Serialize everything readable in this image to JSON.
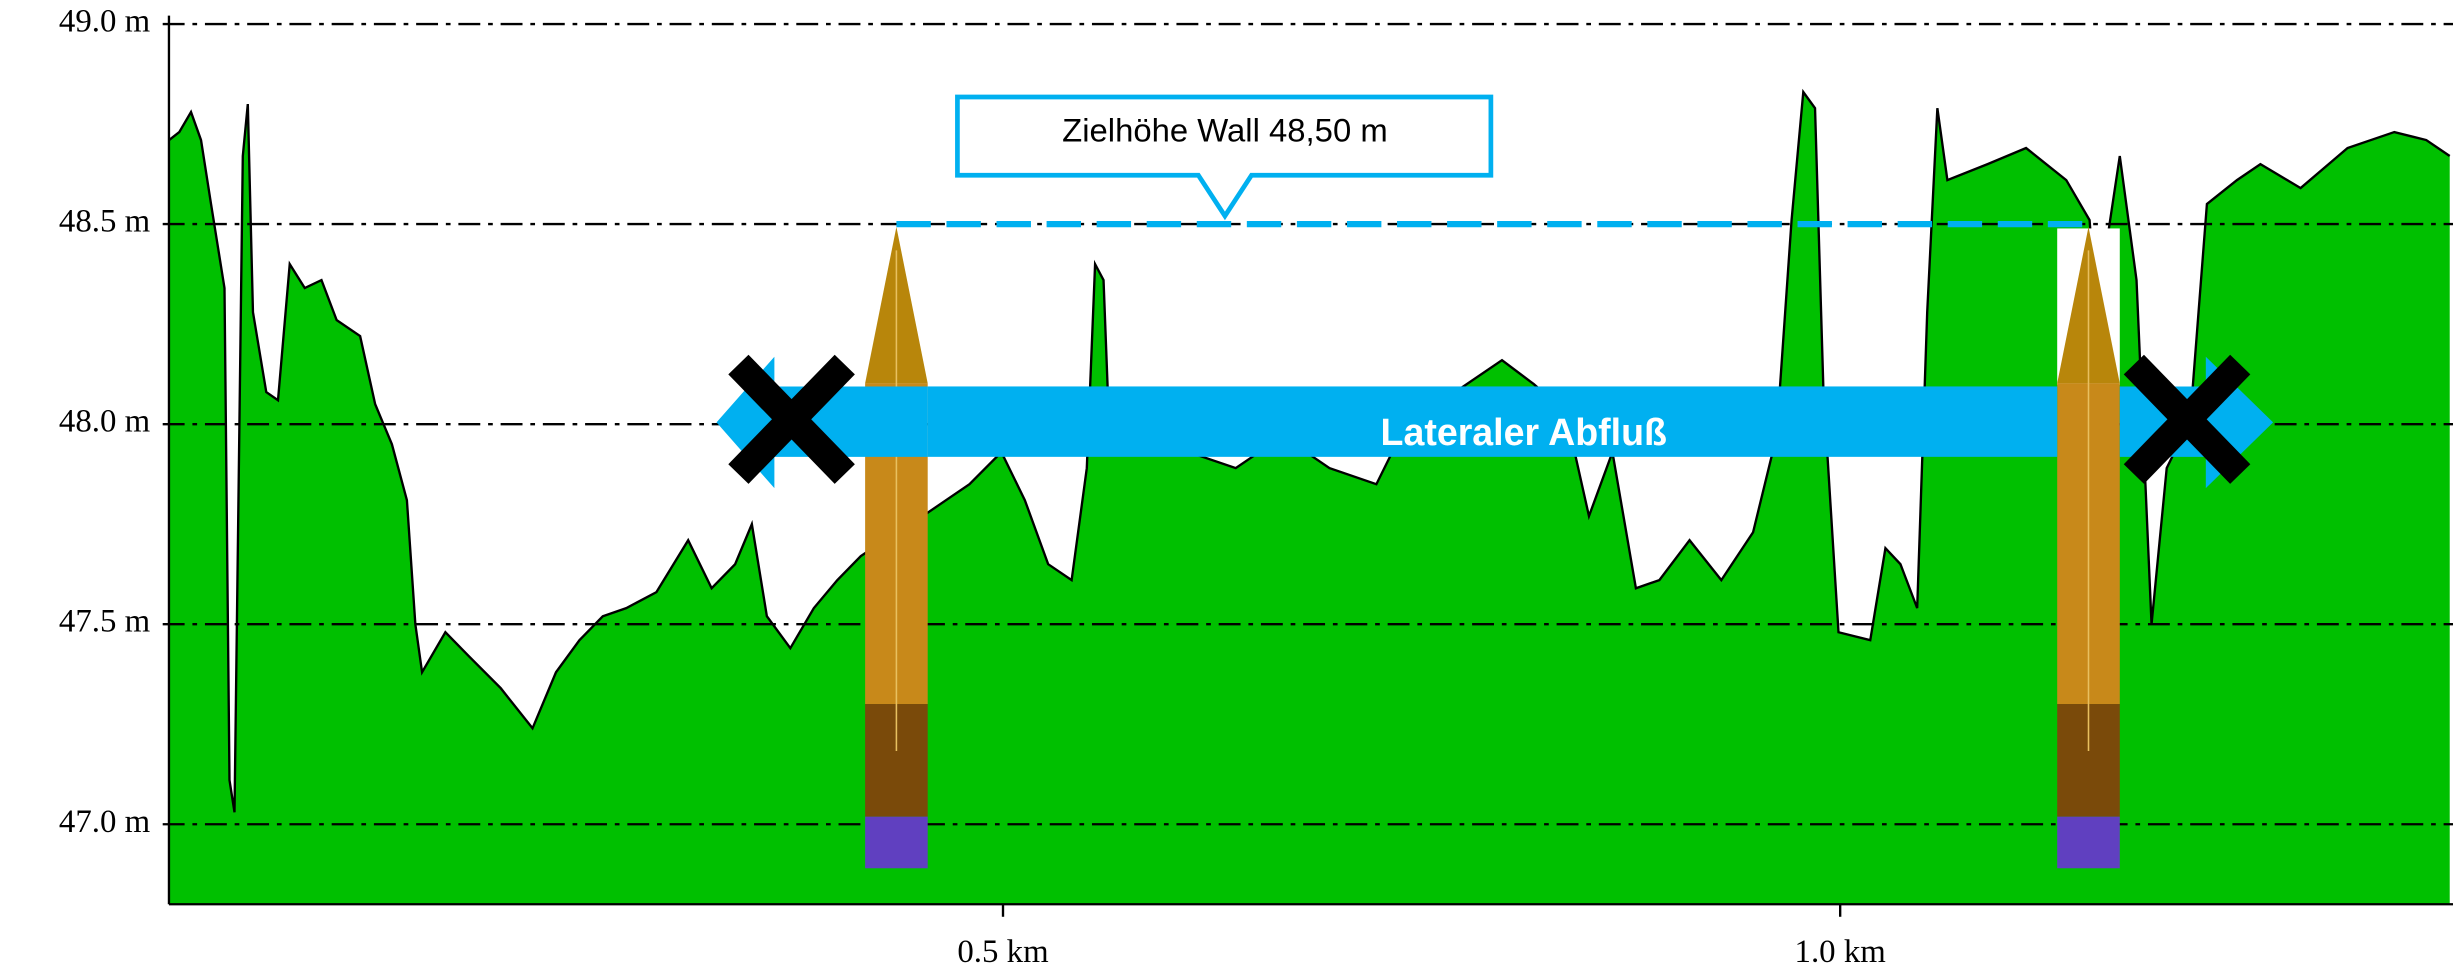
{
  "chart_data": {
    "type": "area",
    "x": [
      0.002,
      0.008,
      0.015,
      0.021,
      0.027,
      0.035,
      0.038,
      0.041,
      0.046,
      0.049,
      0.052,
      0.06,
      0.067,
      0.074,
      0.083,
      0.093,
      0.102,
      0.116,
      0.125,
      0.135,
      0.144,
      0.149,
      0.153,
      0.167,
      0.181,
      0.2,
      0.219,
      0.233,
      0.247,
      0.261,
      0.275,
      0.293,
      0.312,
      0.326,
      0.34,
      0.35,
      0.359,
      0.373,
      0.387,
      0.401,
      0.415,
      0.429,
      0.452,
      0.466,
      0.48,
      0.499,
      0.513,
      0.527,
      0.541,
      0.55,
      0.555,
      0.56,
      0.564,
      0.583,
      0.611,
      0.639,
      0.667,
      0.695,
      0.723,
      0.742,
      0.77,
      0.798,
      0.817,
      0.836,
      0.85,
      0.864,
      0.878,
      0.892,
      0.91,
      0.929,
      0.948,
      0.962,
      0.971,
      0.978,
      0.985,
      0.99,
      0.999,
      1.018,
      1.027,
      1.036,
      1.046,
      1.052,
      1.058,
      1.064,
      1.088,
      1.111,
      1.135,
      1.149,
      1.153,
      1.167,
      1.177,
      1.186,
      1.195,
      1.209,
      1.219,
      1.237,
      1.251,
      1.275,
      1.303,
      1.331,
      1.35,
      1.364
    ],
    "values": [
      48.71,
      48.73,
      48.78,
      48.71,
      48.55,
      48.34,
      47.11,
      47.03,
      48.67,
      48.8,
      48.28,
      48.08,
      48.06,
      48.4,
      48.34,
      48.36,
      48.26,
      48.22,
      48.05,
      47.95,
      47.81,
      47.5,
      47.38,
      47.48,
      47.42,
      47.34,
      47.24,
      47.38,
      47.46,
      47.52,
      47.54,
      47.58,
      47.71,
      47.59,
      47.65,
      47.75,
      47.52,
      47.44,
      47.54,
      47.61,
      47.67,
      47.71,
      47.77,
      47.81,
      47.85,
      47.93,
      47.81,
      47.65,
      47.61,
      47.89,
      48.4,
      48.36,
      47.93,
      47.95,
      47.93,
      47.89,
      47.97,
      47.89,
      47.85,
      48.01,
      48.08,
      48.16,
      48.1,
      48.03,
      47.77,
      47.93,
      47.59,
      47.61,
      47.71,
      47.61,
      47.73,
      47.97,
      48.51,
      48.83,
      48.79,
      48.08,
      47.48,
      47.46,
      47.69,
      47.65,
      47.54,
      48.28,
      48.79,
      48.61,
      48.65,
      48.69,
      48.61,
      48.51,
      48.28,
      48.67,
      48.36,
      47.5,
      47.89,
      48.01,
      48.55,
      48.61,
      48.65,
      48.59,
      48.69,
      48.73,
      48.71,
      48.67
    ],
    "color": "#00c000",
    "xlim": [
      0,
      1.366
    ],
    "ylim": [
      46.8,
      49.06
    ],
    "xticks": [
      {
        "value": 0.5,
        "label": "0.5 km"
      },
      {
        "value": 1.0,
        "label": "1.0 km"
      }
    ],
    "yticks": [
      {
        "value": 47.0,
        "label": "47.0 m"
      },
      {
        "value": 47.5,
        "label": "47.5 m"
      },
      {
        "value": 48.0,
        "label": "48.0 m"
      },
      {
        "value": 48.5,
        "label": "48.5 m"
      },
      {
        "value": 49.0,
        "label": "49.0 m"
      }
    ],
    "grid": true,
    "target_line": 48.5,
    "annotations": [
      "Zielhöhe Wall 48,50 m",
      "Lateraler Abfluß"
    ]
  }
}
